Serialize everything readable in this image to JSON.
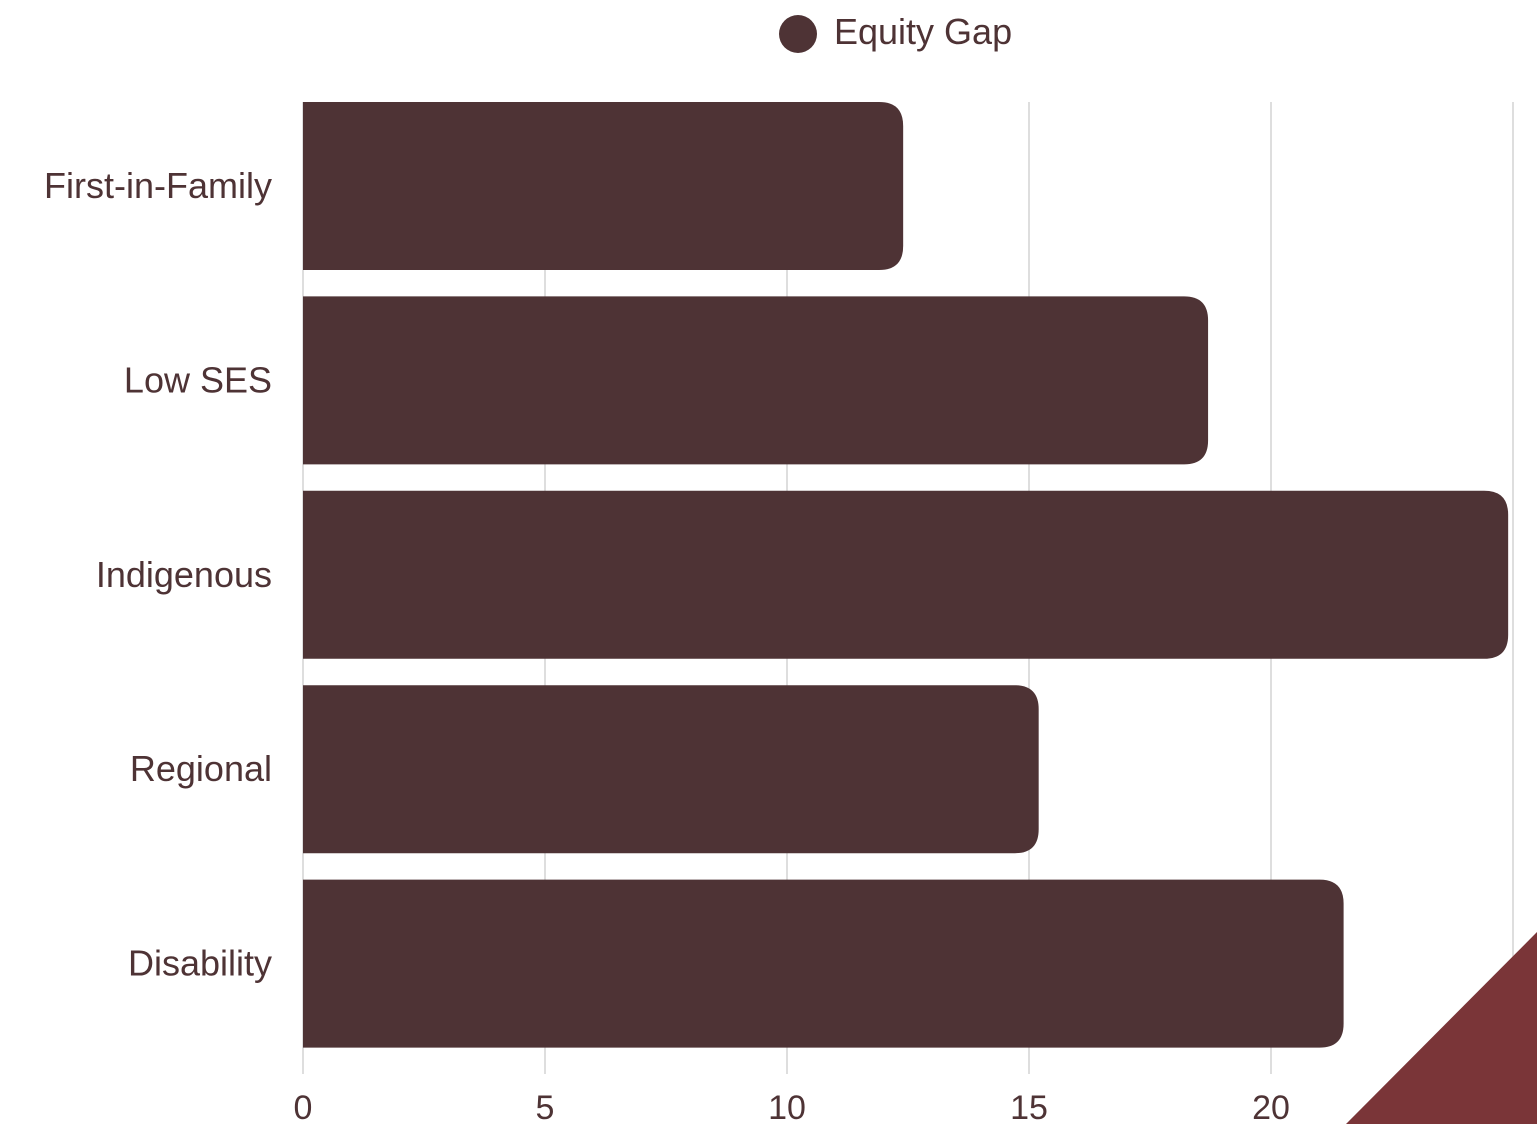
{
  "chart_data": {
    "type": "bar",
    "orientation": "horizontal",
    "categories": [
      "First-in-Family",
      "Low SES",
      "Indigenous",
      "Regional",
      "Disability"
    ],
    "series": [
      {
        "name": "Equity Gap",
        "values": [
          12.4,
          18.7,
          24.9,
          15.2,
          21.5
        ]
      }
    ],
    "xlim": [
      0,
      25
    ],
    "xticks": [
      0,
      5,
      10,
      15,
      20,
      25
    ],
    "grid": true,
    "legend_position": "top-center",
    "colors": {
      "bar": "#4e3335",
      "grid": "#d3d3d3",
      "text": "#4e3335",
      "accent": "#7a3538"
    }
  }
}
